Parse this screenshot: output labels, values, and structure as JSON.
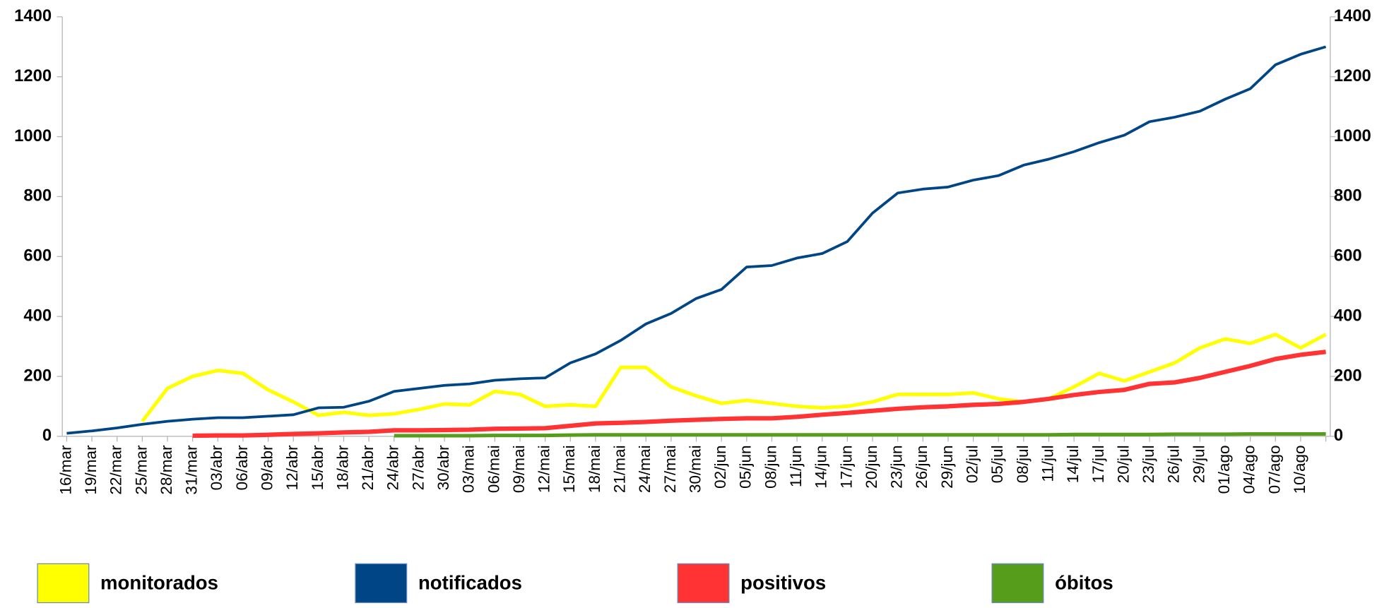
{
  "chart_data": {
    "type": "line",
    "categories": [
      "16/mar",
      "19/mar",
      "22/mar",
      "25/mar",
      "28/mar",
      "31/mar",
      "03/abr",
      "06/abr",
      "09/abr",
      "12/abr",
      "15/abr",
      "18/abr",
      "21/abr",
      "24/abr",
      "27/abr",
      "30/abr",
      "03/mai",
      "06/mai",
      "09/mai",
      "12/mai",
      "15/mai",
      "18/mai",
      "21/mai",
      "24/mai",
      "27/mai",
      "30/mai",
      "02/jun",
      "05/jun",
      "08/jun",
      "11/jun",
      "14/jun",
      "17/jun",
      "20/jun",
      "23/jun",
      "26/jun",
      "29/jun",
      "02/jul",
      "05/jul",
      "08/jul",
      "11/jul",
      "14/jul",
      "17/jul",
      "20/jul",
      "23/jul",
      "26/jul",
      "29/jul",
      "01/ago",
      "04/ago",
      "07/ago",
      "10/ago",
      null
    ],
    "series": [
      {
        "name": "monitorados",
        "color": "#ffff00",
        "values": [
          null,
          null,
          null,
          50,
          160,
          200,
          220,
          210,
          155,
          115,
          70,
          80,
          70,
          75,
          90,
          108,
          105,
          150,
          140,
          100,
          105,
          100,
          230,
          230,
          165,
          135,
          110,
          120,
          110,
          100,
          95,
          100,
          115,
          140,
          140,
          140,
          145,
          125,
          115,
          125,
          165,
          210,
          185,
          215,
          245,
          295,
          325,
          310,
          340,
          295,
          340
        ]
      },
      {
        "name": "notificados",
        "color": "#004586",
        "values": [
          10,
          18,
          28,
          40,
          50,
          57,
          62,
          62,
          67,
          72,
          95,
          97,
          117,
          150,
          160,
          170,
          175,
          187,
          192,
          195,
          245,
          275,
          320,
          375,
          410,
          460,
          490,
          565,
          570,
          595,
          610,
          650,
          745,
          812,
          825,
          832,
          855,
          870,
          905,
          925,
          950,
          980,
          1005,
          1050,
          1065,
          1085,
          1125,
          1160,
          1240,
          1275,
          1300
        ]
      },
      {
        "name": "positivos",
        "color": "#ff3333",
        "values": [
          null,
          null,
          null,
          null,
          null,
          2,
          3,
          3,
          5,
          8,
          10,
          13,
          15,
          20,
          20,
          21,
          22,
          25,
          26,
          27,
          35,
          43,
          45,
          48,
          52,
          55,
          58,
          60,
          60,
          65,
          72,
          78,
          85,
          92,
          97,
          100,
          105,
          108,
          115,
          125,
          138,
          148,
          155,
          175,
          180,
          195,
          215,
          235,
          258,
          272,
          282
        ]
      },
      {
        "name": "óbitos",
        "color": "#579d1c",
        "values": [
          null,
          null,
          null,
          null,
          null,
          null,
          null,
          null,
          null,
          null,
          null,
          null,
          null,
          2,
          2,
          2,
          2,
          3,
          3,
          3,
          4,
          5,
          5,
          5,
          5,
          5,
          5,
          5,
          5,
          5,
          5,
          5,
          5,
          5,
          5,
          5,
          5,
          5,
          5,
          5,
          6,
          6,
          6,
          6,
          7,
          7,
          7,
          8,
          8,
          8,
          8
        ]
      }
    ],
    "ylim": [
      0,
      1400
    ],
    "yticks": [
      0,
      200,
      400,
      600,
      800,
      1000,
      1200,
      1400
    ],
    "y2lim": [
      0,
      1400
    ],
    "y2ticks": [
      0,
      200,
      400,
      600,
      800,
      1000,
      1200,
      1400
    ],
    "legend": "bottom"
  }
}
